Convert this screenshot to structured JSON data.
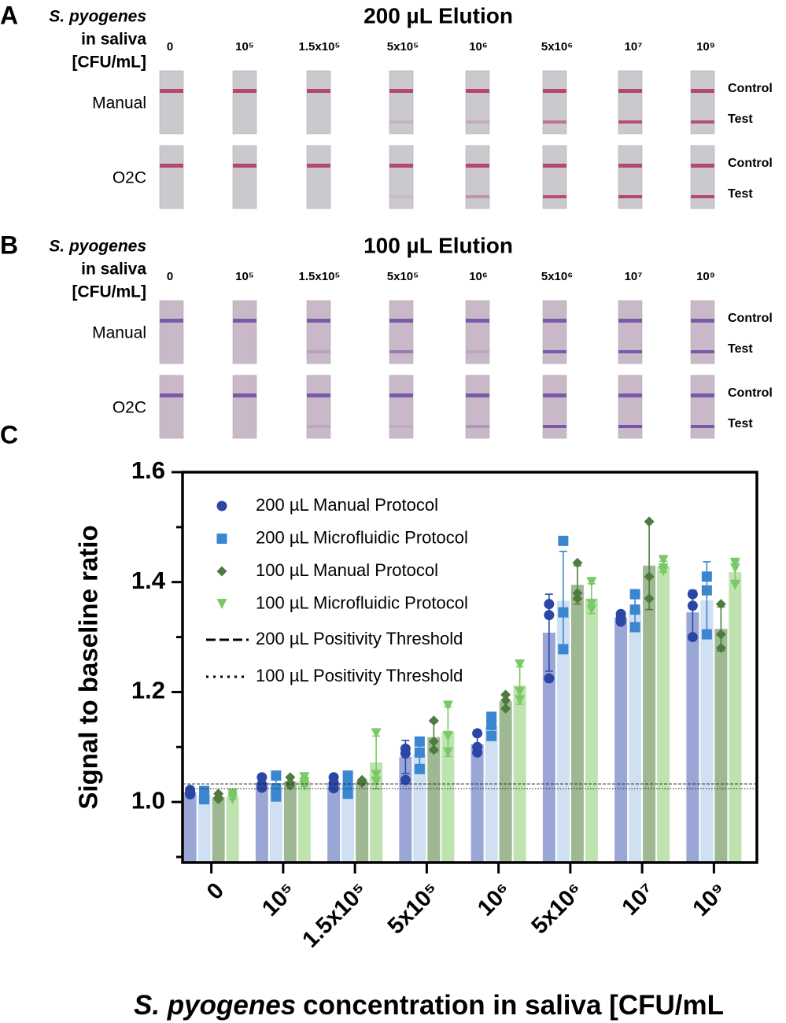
{
  "panel_a": {
    "letter": "A",
    "title": "200 µL Elution",
    "row_header": [
      "S. pyogenes",
      "in saliva",
      "[CFU/mL]"
    ],
    "concentrations": [
      "0",
      "10⁵",
      "1.5x10⁵",
      "5x10⁵",
      "10⁶",
      "5x10⁶",
      "10⁷",
      "10⁹"
    ],
    "rows": [
      "Manual",
      "O2C"
    ],
    "band_labels": [
      [
        "Control",
        "Test"
      ],
      [
        "Control",
        "Test"
      ]
    ]
  },
  "panel_b": {
    "letter": "B",
    "title": "100 µL Elution",
    "row_header": [
      "S. pyogenes",
      "in saliva",
      "[CFU/mL]"
    ],
    "concentrations": [
      "0",
      "10⁵",
      "1.5x10⁵",
      "5x10⁵",
      "10⁶",
      "5x10⁶",
      "10⁷",
      "10⁹"
    ],
    "rows": [
      "Manual",
      "O2C"
    ],
    "band_labels": [
      [
        "Control",
        "Test"
      ],
      [
        "Control",
        "Test"
      ]
    ]
  },
  "panel_c": {
    "letter": "C"
  },
  "chart_data": {
    "type": "bar",
    "y_label": "Signal to baseline ratio",
    "x_label_italic": "S. pyogenes",
    "x_label": "concentration in saliva [CFU/mL",
    "categories": [
      "0",
      "10⁵",
      "1.5x10⁵",
      "5x10⁵",
      "10⁶",
      "5x10⁶",
      "10⁷",
      "10⁹"
    ],
    "ylim": [
      0.89,
      1.6
    ],
    "yticks": [
      {
        "value": 1,
        "label": "1.0"
      },
      1.2,
      1.4,
      1.6
    ],
    "yminorticks": [
      0.9,
      1.1,
      1.3,
      1.5
    ],
    "legend": "top-left",
    "series": [
      {
        "name": "200 µL Manual Protocol",
        "color": "#9aa6d6",
        "point_color": "#2c46a6",
        "marker": "circle",
        "values": [
          1.018,
          1.035,
          1.035,
          1.082,
          1.105,
          1.308,
          1.335,
          1.345
        ],
        "errors": [
          0.004,
          0.01,
          0.01,
          0.03,
          0.018,
          0.07,
          0.005,
          0.04
        ],
        "points": [
          [
            1.022,
            1.018,
            1.014
          ],
          [
            1.045,
            1.032,
            1.026
          ],
          [
            1.045,
            1.035,
            1.025
          ],
          [
            1.097,
            1.088,
            1.04
          ],
          [
            1.125,
            1.1,
            1.09
          ],
          [
            1.36,
            1.34,
            1.225
          ],
          [
            1.342,
            1.335,
            1.328
          ],
          [
            1.378,
            1.357,
            1.3
          ]
        ]
      },
      {
        "name": "200 µL Microfluidic Protocol",
        "color": "#cfe0f3",
        "point_color": "#3a86d0",
        "marker": "square",
        "values": [
          1.012,
          1.028,
          1.031,
          1.087,
          1.138,
          1.366,
          1.348,
          1.367
        ],
        "errors": [
          0.008,
          0.019,
          0.017,
          0.025,
          0.018,
          0.09,
          0.03,
          0.07
        ],
        "points": [
          [
            1.02,
            1.011,
            1.005
          ],
          [
            1.048,
            1.025,
            1.01
          ],
          [
            1.048,
            1.03,
            1.015
          ],
          [
            1.11,
            1.09,
            1.06
          ],
          [
            1.155,
            1.14,
            1.12
          ],
          [
            1.475,
            1.345,
            1.278
          ],
          [
            1.378,
            1.35,
            1.318
          ],
          [
            1.41,
            1.385,
            1.305
          ]
        ]
      },
      {
        "name": "100 µL Manual Protocol",
        "color": "#9fb894",
        "point_color": "#4e7c3e",
        "marker": "diamond",
        "values": [
          1.009,
          1.037,
          1.037,
          1.118,
          1.183,
          1.395,
          1.43,
          1.315
        ],
        "errors": [
          0.005,
          0.008,
          0.003,
          0.027,
          0.013,
          0.035,
          0.08,
          0.04
        ],
        "points": [
          [
            1.015,
            1.008,
            1.005
          ],
          [
            1.045,
            1.035,
            1.03
          ],
          [
            1.04,
            1.037,
            1.035
          ],
          [
            1.148,
            1.11,
            1.095
          ],
          [
            1.195,
            1.185,
            1.17
          ],
          [
            1.435,
            1.38,
            1.37
          ],
          [
            1.51,
            1.41,
            1.37
          ],
          [
            1.36,
            1.305,
            1.28
          ]
        ]
      },
      {
        "name": "100 µL Microfluidic Protocol",
        "color": "#bfe3b0",
        "point_color": "#79c968",
        "marker": "triangle",
        "values": [
          1.01,
          1.037,
          1.072,
          1.128,
          1.212,
          1.37,
          1.428,
          1.418
        ],
        "errors": [
          0.005,
          0.008,
          0.048,
          0.045,
          0.034,
          0.027,
          0.01,
          0.02
        ],
        "points": [
          [
            1.015,
            1.01,
            1.005
          ],
          [
            1.045,
            1.035,
            1.03
          ],
          [
            1.125,
            1.049,
            1.037
          ],
          [
            1.175,
            1.12,
            1.09
          ],
          [
            1.25,
            1.2,
            1.185
          ],
          [
            1.4,
            1.36,
            1.35
          ],
          [
            1.44,
            1.425,
            1.42
          ],
          [
            1.435,
            1.425,
            1.395
          ]
        ]
      }
    ],
    "thresholds": [
      {
        "name": "200 µL Positivity Threshold",
        "value": 1.033,
        "dash": "dashed"
      },
      {
        "name": "100 µL Positivity Threshold",
        "value": 1.024,
        "dash": "dotted"
      }
    ]
  }
}
